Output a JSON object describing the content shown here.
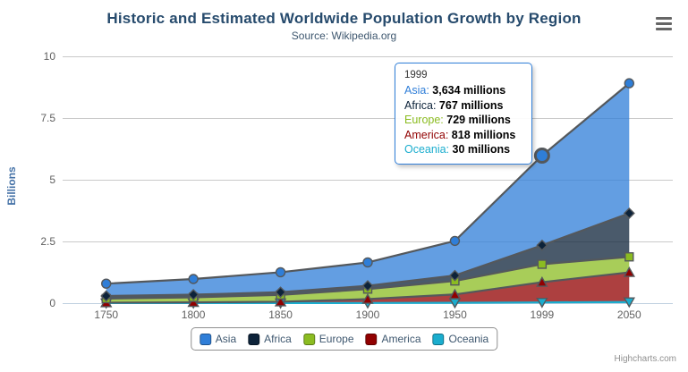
{
  "header": {
    "title": "Historic and Estimated Worldwide Population Growth by Region",
    "subtitle": "Source: Wikipedia.org"
  },
  "export_menu": {
    "icon": "hamburger-icon"
  },
  "y_axis": {
    "title": "Billions",
    "ticks": [
      "0",
      "2.5",
      "5",
      "7.5",
      "10"
    ]
  },
  "x_axis": {
    "labels": [
      "1750",
      "1800",
      "1850",
      "1900",
      "1950",
      "1999",
      "2050"
    ]
  },
  "legend": {
    "items": [
      {
        "label": "Asia",
        "color": "#2f7ed8"
      },
      {
        "label": "Africa",
        "color": "#0d233a"
      },
      {
        "label": "Europe",
        "color": "#8bbc21"
      },
      {
        "label": "America",
        "color": "#910000"
      },
      {
        "label": "Oceania",
        "color": "#1aadce"
      }
    ]
  },
  "tooltip": {
    "header": "1999",
    "category_index": 5,
    "hover_series": "Asia",
    "border_color": "#2f7ed8",
    "rows": [
      {
        "label": "Asia",
        "value": "3,634 millions",
        "color": "#2f7ed8"
      },
      {
        "label": "Africa",
        "value": "767 millions",
        "color": "#0d233a"
      },
      {
        "label": "Europe",
        "value": "729 millions",
        "color": "#8bbc21"
      },
      {
        "label": "America",
        "value": "818 millions",
        "color": "#910000"
      },
      {
        "label": "Oceania",
        "value": "30 millions",
        "color": "#1aadce"
      }
    ]
  },
  "credits": "Highcharts.com",
  "colors": {
    "title": "#274b6d",
    "subtitle": "#3E576F",
    "axis_label": "#606060",
    "gridline": "#C9C9C9",
    "axis_line": "#C0D0E0",
    "marker_stroke": "#54585C",
    "legend_text": "#3E576F",
    "credits_text": "#909090"
  },
  "chart_data": {
    "type": "area",
    "stacking": "normal",
    "title": "Historic and Estimated Worldwide Population Growth by Region",
    "subtitle": "Source: Wikipedia.org",
    "xlabel": "",
    "ylabel": "Billions",
    "ylim": [
      0,
      10
    ],
    "y_tick_values": [
      0,
      2.5,
      5,
      7.5,
      10
    ],
    "grid": true,
    "legend_position": "bottom",
    "values_unit": "millions",
    "categories": [
      1750,
      1800,
      1850,
      1900,
      1950,
      1999,
      2050
    ],
    "stack_order_bottom_to_top": [
      "Oceania",
      "America",
      "Europe",
      "Africa",
      "Asia"
    ],
    "series": [
      {
        "name": "Asia",
        "color": "#2f7ed8",
        "line_color": "#54585C",
        "marker": "circle",
        "values": [
          502,
          635,
          809,
          947,
          1402,
          3634,
          5268
        ]
      },
      {
        "name": "Africa",
        "color": "#0d233a",
        "line_color": "#54585C",
        "marker": "diamond",
        "values": [
          106,
          107,
          111,
          133,
          221,
          767,
          1766
        ]
      },
      {
        "name": "Europe",
        "color": "#8bbc21",
        "line_color": "#54585C",
        "marker": "square",
        "values": [
          163,
          203,
          276,
          408,
          547,
          729,
          628
        ]
      },
      {
        "name": "America",
        "color": "#910000",
        "line_color": "#54585C",
        "marker": "triangle",
        "values": [
          18,
          31,
          54,
          156,
          339,
          818,
          1201
        ]
      },
      {
        "name": "Oceania",
        "color": "#1aadce",
        "line_color": "#1aadce",
        "marker": "triangle-down",
        "values": [
          2,
          2,
          2,
          6,
          13,
          30,
          46
        ]
      }
    ],
    "fill_opacity": 0.75
  }
}
